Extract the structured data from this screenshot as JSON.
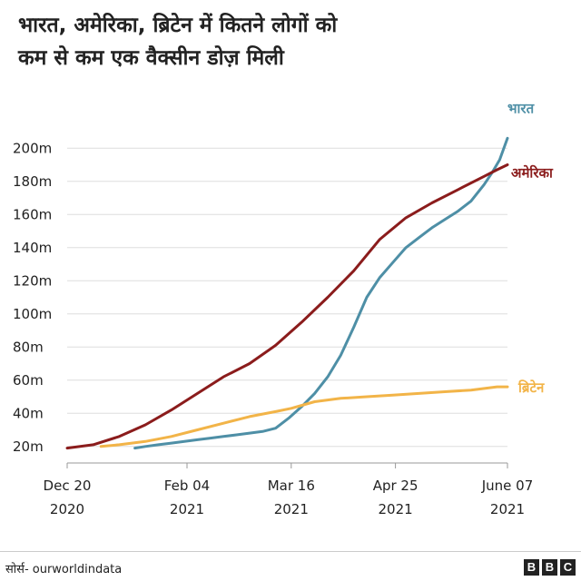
{
  "header": {
    "title_line1": "भारत, अमेरिका, ब्रिटेन में कितने लोगों को",
    "title_line2": "कम से कम एक वैक्सीन डोज़ मिली"
  },
  "footer": {
    "source": "सोर्स- ourworldindata",
    "logo_letters": [
      "B",
      "B",
      "C"
    ]
  },
  "chart_data": {
    "type": "line",
    "title": "भारत, अमेरिका, ब्रिटेन में कितने लोगों को कम से कम एक वैक्सीन डोज़ मिली",
    "x_unit": "days since Dec 20 2020",
    "xlim": [
      0,
      169
    ],
    "ylim": [
      10,
      210
    ],
    "y_ticks": [
      {
        "value": 20,
        "label": "20m"
      },
      {
        "value": 40,
        "label": "40m"
      },
      {
        "value": 60,
        "label": "60m"
      },
      {
        "value": 80,
        "label": "80m"
      },
      {
        "value": 100,
        "label": "100m"
      },
      {
        "value": 120,
        "label": "120m"
      },
      {
        "value": 140,
        "label": "140m"
      },
      {
        "value": 160,
        "label": "160m"
      },
      {
        "value": 180,
        "label": "180m"
      },
      {
        "value": 200,
        "label": "200m"
      }
    ],
    "x_ticks": [
      {
        "value": 0,
        "line1": "Dec 20",
        "line2": "2020"
      },
      {
        "value": 46,
        "line1": "Feb 04",
        "line2": "2021"
      },
      {
        "value": 86,
        "line1": "Mar 16",
        "line2": "2021"
      },
      {
        "value": 126,
        "line1": "Apr 25",
        "line2": "2021"
      },
      {
        "value": 169,
        "line1": "June 07",
        "line2": "2021"
      }
    ],
    "series": [
      {
        "name": "भारत",
        "color": "#4e8fa6",
        "x": [
          26,
          30,
          35,
          40,
          45,
          50,
          55,
          60,
          65,
          70,
          75,
          80,
          85,
          90,
          95,
          100,
          105,
          110,
          115,
          120,
          125,
          130,
          135,
          140,
          145,
          150,
          155,
          160,
          163,
          166,
          169
        ],
        "y": [
          19,
          20,
          21,
          22,
          23,
          24,
          25,
          26,
          27,
          28,
          29,
          31,
          37,
          44,
          52,
          62,
          75,
          92,
          110,
          122,
          131,
          140,
          146,
          152,
          157,
          162,
          168,
          178,
          185,
          193,
          206
        ]
      },
      {
        "name": "अमेरिका",
        "color": "#8b1c1c",
        "x": [
          0,
          10,
          20,
          30,
          40,
          50,
          60,
          70,
          80,
          90,
          100,
          110,
          120,
          130,
          140,
          150,
          160,
          165,
          169
        ],
        "y": [
          19,
          21,
          26,
          33,
          42,
          52,
          62,
          70,
          81,
          95,
          110,
          126,
          145,
          158,
          167,
          175,
          183,
          187,
          190
        ]
      },
      {
        "name": "ब्रिटेन",
        "color": "#f2b448",
        "x": [
          13,
          20,
          30,
          40,
          50,
          60,
          70,
          80,
          86,
          95,
          105,
          115,
          125,
          135,
          145,
          155,
          165,
          169
        ],
        "y": [
          20,
          21,
          23,
          26,
          30,
          34,
          38,
          41,
          43,
          47,
          49,
          50,
          51,
          52,
          53,
          54,
          56,
          56
        ]
      }
    ]
  }
}
